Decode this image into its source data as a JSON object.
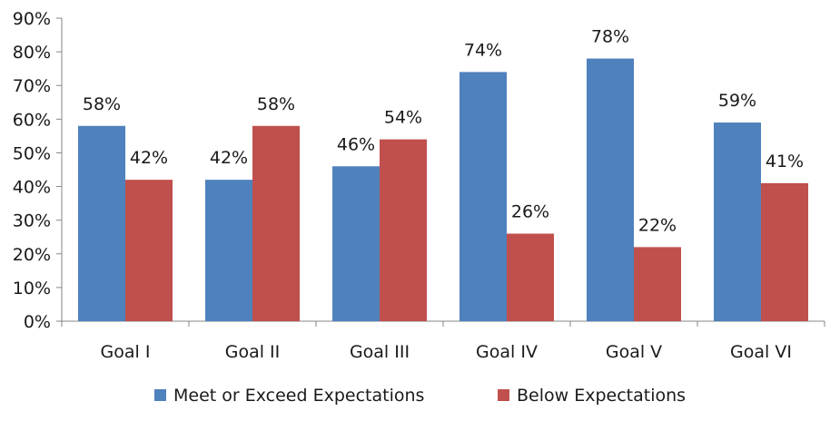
{
  "chart_data": {
    "type": "bar",
    "categories": [
      "Goal I",
      "Goal II",
      "Goal III",
      "Goal IV",
      "Goal V",
      "Goal VI"
    ],
    "series": [
      {
        "name": "Meet or Exceed Expectations",
        "values": [
          58,
          42,
          46,
          74,
          78,
          59
        ],
        "labels": [
          "58%",
          "42%",
          "46%",
          "74%",
          "78%",
          "59%"
        ],
        "color": "#4F81BD"
      },
      {
        "name": "Below Expectations",
        "values": [
          42,
          58,
          54,
          26,
          22,
          41
        ],
        "labels": [
          "42%",
          "58%",
          "54%",
          "26%",
          "22%",
          "41%"
        ],
        "color": "#C0504D"
      }
    ],
    "y_ticks": [
      "0%",
      "10%",
      "20%",
      "30%",
      "40%",
      "50%",
      "60%",
      "70%",
      "80%",
      "90%"
    ],
    "ylim": [
      0,
      90
    ],
    "grid": false,
    "legend_position": "bottom",
    "title": "",
    "xlabel": "",
    "ylabel": ""
  }
}
